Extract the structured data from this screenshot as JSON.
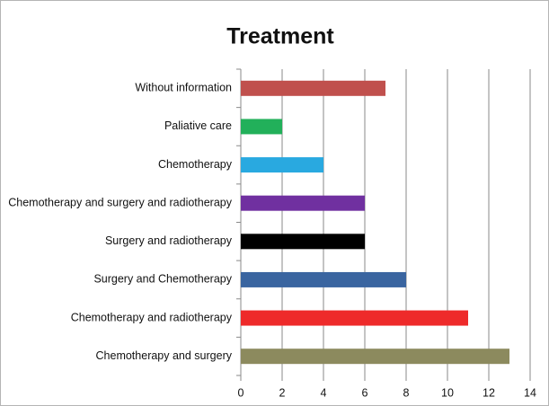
{
  "chart_data": {
    "type": "barh",
    "title": "Treatment",
    "categories": [
      "Without information",
      "Paliative care",
      "Chemotherapy",
      "Chemotherapy and surgery and radiotherapy",
      "Surgery and radiotherapy",
      "Surgery and Chemotherapy",
      "Chemotherapy and radiotherapy",
      "Chemotherapy and surgery"
    ],
    "values": [
      7,
      2,
      4,
      6,
      6,
      8,
      11,
      13
    ],
    "colors": [
      "#c0504d",
      "#22b05a",
      "#29a9e0",
      "#7030a0",
      "#000000",
      "#3a65a0",
      "#ee2a2a",
      "#8c8a5e"
    ],
    "xlim": [
      0,
      14
    ],
    "xticks": [
      0,
      2,
      4,
      6,
      8,
      10,
      12,
      14
    ],
    "grid": true
  }
}
